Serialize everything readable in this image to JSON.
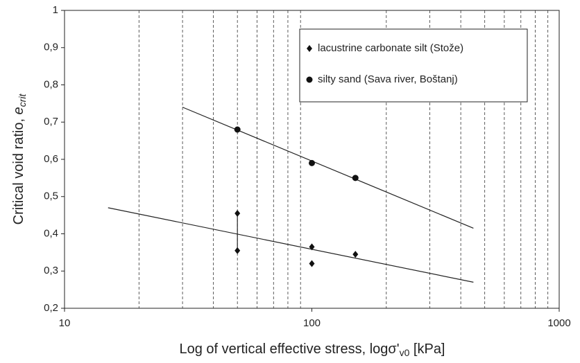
{
  "chart_data": {
    "type": "scatter",
    "xlabel": {
      "text": "Log of vertical effective stress, logσ'",
      "sub": "v0",
      "after": " [kPa]"
    },
    "ylabel": {
      "text": "Critical void ratio, ",
      "var": "e",
      "sub": "crit"
    },
    "xscale": "log",
    "xlim": [
      10,
      1000
    ],
    "xticks": [
      10,
      100,
      1000
    ],
    "x_minor_grid": [
      20,
      30,
      40,
      50,
      60,
      70,
      80,
      90,
      200,
      300,
      400,
      500,
      600,
      700,
      800,
      900
    ],
    "ylim": [
      0.2,
      1
    ],
    "yticks": [
      {
        "value": 0.2,
        "label": "0,2"
      },
      {
        "value": 0.3,
        "label": "0,3"
      },
      {
        "value": 0.4,
        "label": "0,4"
      },
      {
        "value": 0.5,
        "label": "0,5"
      },
      {
        "value": 0.6,
        "label": "0,6"
      },
      {
        "value": 0.7,
        "label": "0,7"
      },
      {
        "value": 0.8,
        "label": "0,8"
      },
      {
        "value": 0.9,
        "label": "0,9"
      },
      1
    ],
    "legend": "upper right",
    "series": [
      {
        "name": "lacustrine carbonate silt (Stože)",
        "marker": "diamond",
        "color": "#111111",
        "x": [
          50,
          50,
          100,
          100,
          150
        ],
        "values": [
          0.455,
          0.355,
          0.365,
          0.32,
          0.345
        ]
      },
      {
        "name": "silty sand (Sava river, Boštanj)",
        "marker": "circle",
        "color": "#111111",
        "x": [
          50,
          100,
          150
        ],
        "values": [
          0.68,
          0.59,
          0.55
        ]
      }
    ],
    "lines": [
      {
        "x": [
          30,
          450
        ],
        "values": [
          0.74,
          0.415
        ]
      },
      {
        "x": [
          15,
          450
        ],
        "values": [
          0.47,
          0.27
        ]
      },
      {
        "x": [
          50,
          50
        ],
        "values": [
          0.355,
          0.455
        ]
      }
    ]
  }
}
